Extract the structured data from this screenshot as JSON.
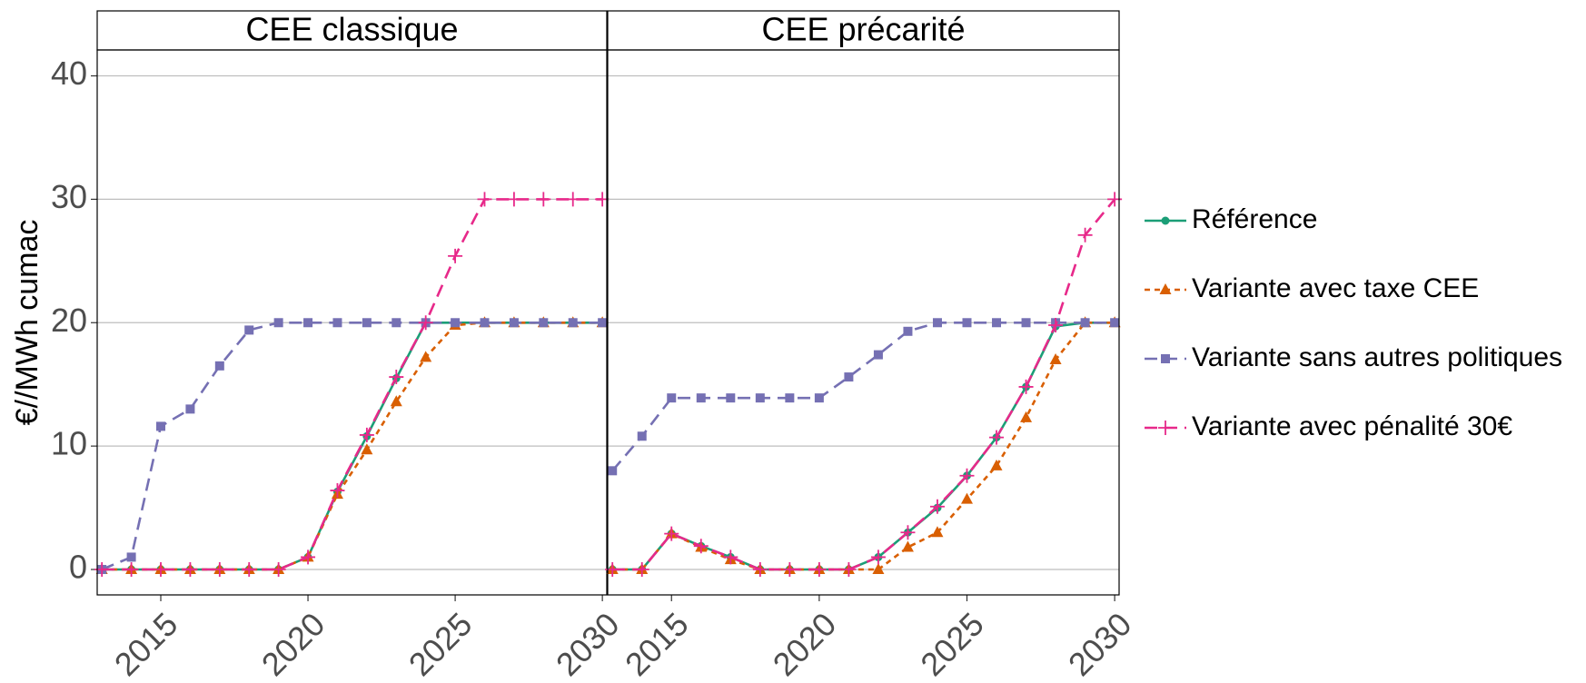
{
  "chart_data": {
    "type": "line",
    "ylabel": "€//MWh cumac",
    "x": [
      2013,
      2014,
      2015,
      2016,
      2017,
      2018,
      2019,
      2020,
      2021,
      2022,
      2023,
      2024,
      2025,
      2026,
      2027,
      2028,
      2029,
      2030
    ],
    "xlim": [
      2012.84,
      2030.15
    ],
    "xticks": [
      2015,
      2020,
      2025,
      2030
    ],
    "ylim": [
      -2.06,
      42.1
    ],
    "yticks": [
      0,
      10,
      20,
      30,
      40
    ],
    "grid": true,
    "legend": "right",
    "series": [
      {
        "name": "Référence",
        "color": "#1b9e77",
        "dash": "solid",
        "marker": "circle"
      },
      {
        "name": "Variante avec taxe CEE",
        "color": "#d95f02",
        "dash": "dotted",
        "marker": "triangle"
      },
      {
        "name": "Variante sans autres politiques",
        "color": "#7570b3",
        "dash": "dashed",
        "marker": "square"
      },
      {
        "name": "Variante avec pénalité 30€",
        "color": "#e7298a",
        "dash": "dashed",
        "marker": "plus"
      }
    ],
    "panels": [
      {
        "title": "CEE classique",
        "series": [
          {
            "values": [
              0,
              0,
              0,
              0,
              0,
              0,
              0,
              1,
              6.3,
              10.8,
              15.5,
              20,
              20,
              20,
              20,
              20,
              20,
              20
            ]
          },
          {
            "values": [
              0,
              0,
              0,
              0,
              0,
              0,
              0,
              1,
              6.1,
              9.7,
              13.6,
              17.2,
              19.8,
              20,
              20,
              20,
              20,
              20
            ]
          },
          {
            "values": [
              0,
              1,
              11.6,
              13,
              16.5,
              19.4,
              20,
              20,
              20,
              20,
              20,
              20,
              20,
              20,
              20,
              20,
              20,
              20
            ]
          },
          {
            "values": [
              0,
              0,
              0,
              0,
              0,
              0,
              0,
              1,
              6.4,
              10.9,
              15.6,
              20,
              25.4,
              30,
              30,
              30,
              30,
              30
            ]
          }
        ]
      },
      {
        "title": "CEE précarité",
        "series": [
          {
            "values": [
              0,
              0,
              2.9,
              1.9,
              1,
              0,
              0,
              0,
              0,
              1,
              3,
              5,
              7.6,
              10.7,
              14.8,
              19.7,
              20,
              20
            ]
          },
          {
            "values": [
              0,
              0,
              2.9,
              1.8,
              0.8,
              0,
              0,
              0,
              0,
              0,
              1.8,
              3,
              5.7,
              8.4,
              12.3,
              17,
              20,
              20
            ]
          },
          {
            "values": [
              8,
              10.8,
              13.9,
              13.9,
              13.9,
              13.9,
              13.9,
              13.9,
              15.6,
              17.4,
              19.3,
              20,
              20,
              20,
              20,
              20,
              20,
              20
            ]
          },
          {
            "values": [
              0,
              0,
              2.9,
              1.9,
              1,
              0,
              0,
              0,
              0,
              1,
              3,
              5.1,
              7.6,
              10.7,
              14.8,
              19.8,
              27.1,
              30
            ]
          }
        ]
      }
    ]
  }
}
